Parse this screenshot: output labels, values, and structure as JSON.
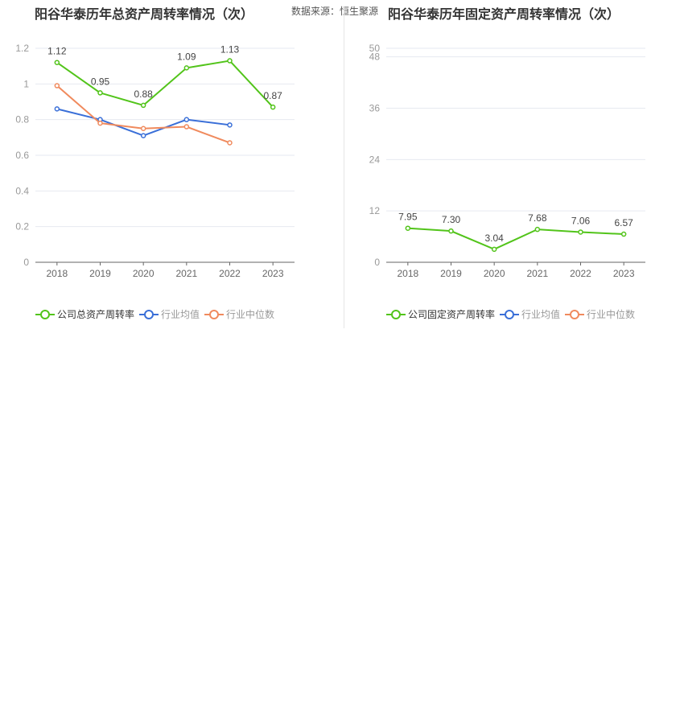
{
  "source_label": "数据来源：恒生聚源",
  "chart_data": [
    {
      "type": "line",
      "title": "阳谷华泰历年总资产周转率情况（次）",
      "categories": [
        "2018",
        "2019",
        "2020",
        "2021",
        "2022",
        "2023"
      ],
      "ylim": [
        0,
        1.2
      ],
      "ytick_labels": [
        "0",
        "0.2",
        "0.4",
        "0.6",
        "0.8",
        "1",
        "1.2"
      ],
      "grid": true,
      "legend_position": "bottom",
      "series": [
        {
          "name": "公司总资产周转率",
          "color": "#52c41a",
          "values": [
            1.12,
            0.95,
            0.88,
            1.09,
            1.13,
            0.87
          ],
          "labels": [
            "1.12",
            "0.95",
            "0.88",
            "1.09",
            "1.13",
            "0.87"
          ]
        },
        {
          "name": "行业均值",
          "color": "#3a6fd8",
          "values": [
            0.86,
            0.8,
            0.71,
            0.8,
            0.77,
            null
          ]
        },
        {
          "name": "行业中位数",
          "color": "#f08a5d",
          "values": [
            0.99,
            0.78,
            0.75,
            0.76,
            0.67,
            null
          ]
        }
      ]
    },
    {
      "type": "line",
      "title": "阳谷华泰历年固定资产周转率情况（次）",
      "categories": [
        "2018",
        "2019",
        "2020",
        "2021",
        "2022",
        "2023"
      ],
      "ylim": [
        0,
        50
      ],
      "ytick_labels": [
        "0",
        "12",
        "24",
        "36",
        "48",
        "50"
      ],
      "grid": true,
      "legend_position": "bottom",
      "series": [
        {
          "name": "公司固定资产周转率",
          "color": "#52c41a",
          "values": [
            7.95,
            7.3,
            3.04,
            7.68,
            7.06,
            6.57
          ],
          "labels": [
            "7.95",
            "7.30",
            "3.04",
            "7.68",
            "7.06",
            "6.57"
          ]
        },
        {
          "name": "行业均值",
          "color": "#3a6fd8",
          "values": [
            null,
            null,
            null,
            null,
            null,
            null
          ]
        },
        {
          "name": "行业中位数",
          "color": "#f08a5d",
          "values": [
            null,
            null,
            null,
            null,
            null,
            null
          ]
        }
      ]
    }
  ]
}
